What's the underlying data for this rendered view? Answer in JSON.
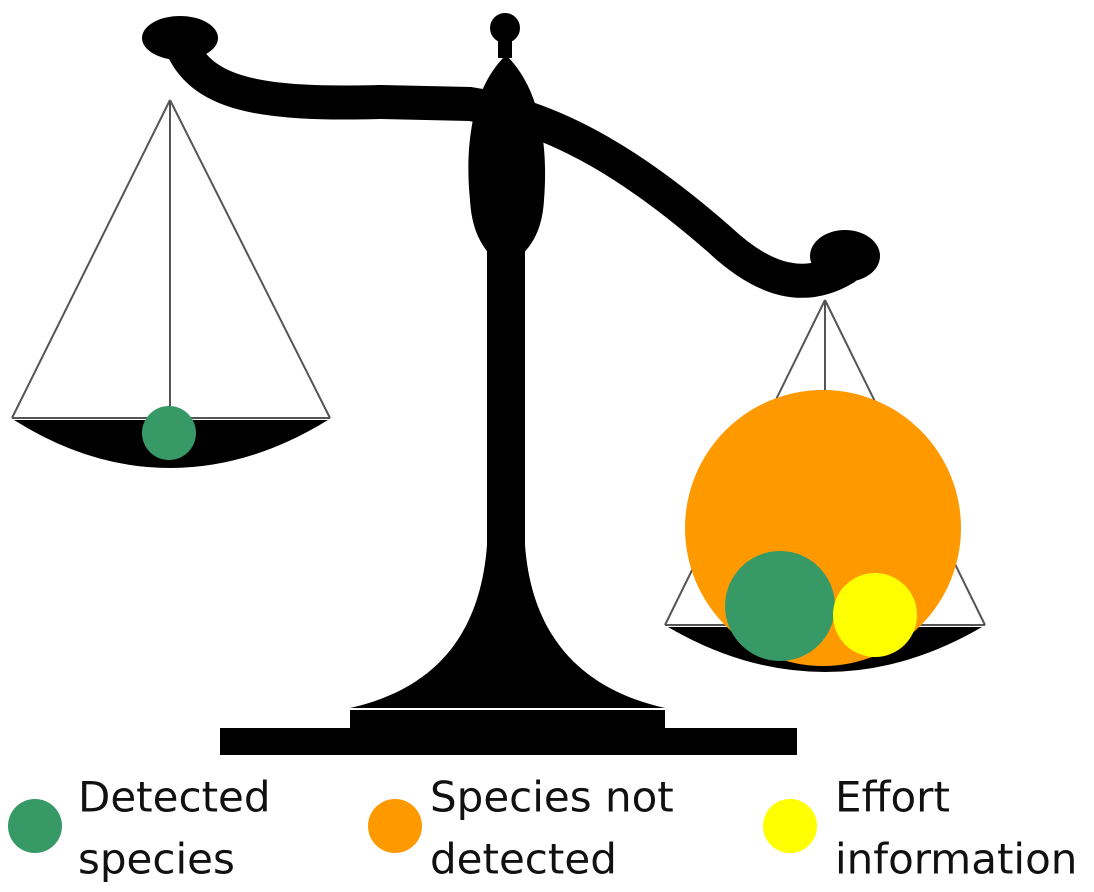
{
  "legend": [
    {
      "lines": [
        "Detected",
        "species"
      ]
    },
    {
      "lines": [
        "Species not",
        "detected"
      ]
    },
    {
      "lines": [
        "Effort",
        "information"
      ]
    }
  ]
}
